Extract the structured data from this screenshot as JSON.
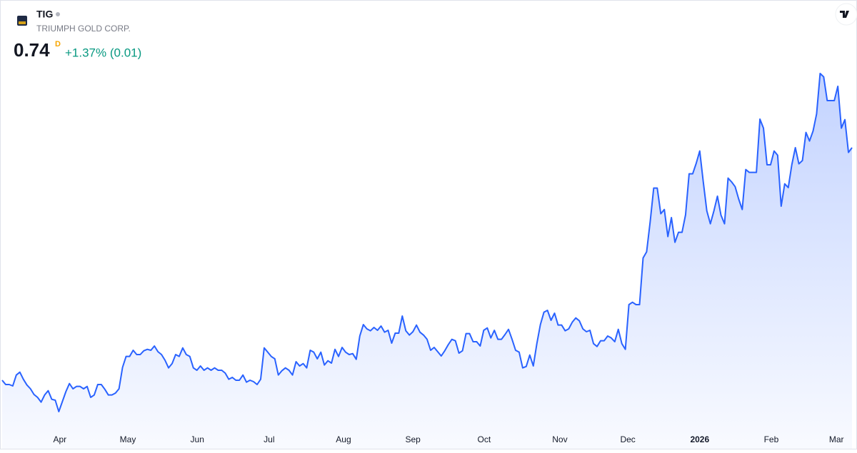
{
  "chart_data": {
    "type": "area",
    "title": "TIG",
    "subtitle": "TRIUMPH GOLD CORP.",
    "last_price": 0.74,
    "interval": "D",
    "change": "+1.37% (0.01)",
    "color": "#2962ff",
    "grid": false,
    "xlim": [
      0,
      240
    ],
    "ylim": [
      0.155,
      0.914
    ],
    "xticks": [
      {
        "value": 16.3,
        "label": "Apr"
      },
      {
        "value": 35.5,
        "label": "May"
      },
      {
        "value": 55.1,
        "label": "Jun"
      },
      {
        "value": 75.4,
        "label": "Jul"
      },
      {
        "value": 96.4,
        "label": "Aug"
      },
      {
        "value": 116.0,
        "label": "Sep"
      },
      {
        "value": 136.1,
        "label": "Oct"
      },
      {
        "value": 157.5,
        "label": "Nov"
      },
      {
        "value": 176.7,
        "label": "Dec"
      },
      {
        "value": 197.0,
        "label": "2026"
      },
      {
        "value": 217.2,
        "label": "Feb"
      },
      {
        "value": 235.6,
        "label": "Mar"
      }
    ],
    "values": [
      0.251,
      0.242,
      0.242,
      0.239,
      0.262,
      0.268,
      0.253,
      0.241,
      0.233,
      0.221,
      0.215,
      0.205,
      0.22,
      0.229,
      0.211,
      0.209,
      0.185,
      0.206,
      0.227,
      0.244,
      0.233,
      0.238,
      0.238,
      0.233,
      0.238,
      0.215,
      0.22,
      0.242,
      0.242,
      0.232,
      0.22,
      0.22,
      0.224,
      0.233,
      0.278,
      0.301,
      0.301,
      0.314,
      0.305,
      0.305,
      0.313,
      0.316,
      0.314,
      0.323,
      0.311,
      0.305,
      0.293,
      0.277,
      0.286,
      0.305,
      0.301,
      0.319,
      0.305,
      0.301,
      0.277,
      0.272,
      0.281,
      0.272,
      0.277,
      0.272,
      0.277,
      0.272,
      0.272,
      0.266,
      0.253,
      0.257,
      0.251,
      0.251,
      0.262,
      0.247,
      0.251,
      0.248,
      0.242,
      0.253,
      0.319,
      0.31,
      0.301,
      0.296,
      0.262,
      0.271,
      0.277,
      0.272,
      0.262,
      0.29,
      0.281,
      0.286,
      0.277,
      0.314,
      0.31,
      0.296,
      0.31,
      0.283,
      0.292,
      0.287,
      0.316,
      0.301,
      0.32,
      0.31,
      0.305,
      0.307,
      0.295,
      0.344,
      0.368,
      0.359,
      0.355,
      0.362,
      0.356,
      0.365,
      0.352,
      0.356,
      0.329,
      0.35,
      0.35,
      0.386,
      0.355,
      0.346,
      0.353,
      0.367,
      0.352,
      0.346,
      0.337,
      0.314,
      0.32,
      0.311,
      0.302,
      0.313,
      0.326,
      0.337,
      0.334,
      0.308,
      0.313,
      0.349,
      0.349,
      0.332,
      0.332,
      0.323,
      0.356,
      0.361,
      0.34,
      0.356,
      0.337,
      0.337,
      0.347,
      0.358,
      0.337,
      0.314,
      0.31,
      0.277,
      0.28,
      0.304,
      0.281,
      0.328,
      0.368,
      0.394,
      0.398,
      0.377,
      0.392,
      0.367,
      0.367,
      0.355,
      0.359,
      0.373,
      0.382,
      0.376,
      0.359,
      0.353,
      0.356,
      0.328,
      0.322,
      0.334,
      0.334,
      0.344,
      0.34,
      0.332,
      0.358,
      0.328,
      0.316,
      0.41,
      0.415,
      0.41,
      0.41,
      0.508,
      0.521,
      0.584,
      0.655,
      0.655,
      0.601,
      0.61,
      0.553,
      0.593,
      0.541,
      0.562,
      0.562,
      0.599,
      0.685,
      0.685,
      0.707,
      0.733,
      0.668,
      0.607,
      0.58,
      0.607,
      0.638,
      0.598,
      0.58,
      0.676,
      0.668,
      0.658,
      0.632,
      0.61,
      0.694,
      0.688,
      0.688,
      0.688,
      0.8,
      0.781,
      0.704,
      0.704,
      0.733,
      0.724,
      0.617,
      0.664,
      0.656,
      0.704,
      0.74,
      0.706,
      0.713,
      0.772,
      0.754,
      0.775,
      0.811,
      0.896,
      0.889,
      0.839,
      0.839,
      0.839,
      0.869,
      0.781,
      0.799,
      0.73,
      0.74
    ]
  }
}
